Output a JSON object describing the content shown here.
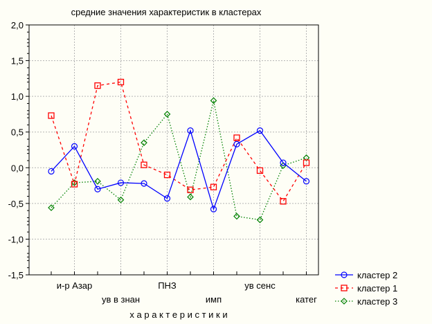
{
  "chart_data": {
    "type": "line",
    "title": "средние значения характеристик в кластерах",
    "xlabel": "х а р а к т е р и с т и к и",
    "ylabel": "",
    "ylim": [
      -1.5,
      2.0
    ],
    "yticks": [
      "2,0",
      "1,5",
      "1,0",
      "0,5",
      "0,0",
      "-0,5",
      "-1,0",
      "-1,5"
    ],
    "ytick_values": [
      2.0,
      1.5,
      1.0,
      0.5,
      0.0,
      -0.5,
      -1.0,
      -1.5
    ],
    "grid": true,
    "legend_position": "bottom-right",
    "categories": [
      "",
      "и-р Азар",
      "",
      "ув в знан",
      "",
      "ПНЗ",
      "",
      "имп",
      "",
      "ув сенс",
      "",
      "катег"
    ],
    "series": [
      {
        "name": "кластер 2",
        "color": "#0000ff",
        "marker": "circle",
        "dash": "solid",
        "values": [
          -0.05,
          0.3,
          -0.3,
          -0.21,
          -0.22,
          -0.43,
          0.52,
          -0.58,
          0.33,
          0.52,
          0.07,
          -0.19
        ]
      },
      {
        "name": "кластер 1",
        "color": "#ff0000",
        "marker": "square",
        "dash": "dashed",
        "values": [
          0.73,
          -0.23,
          1.15,
          1.2,
          0.04,
          -0.1,
          -0.31,
          -0.27,
          0.42,
          -0.04,
          -0.47,
          0.07
        ]
      },
      {
        "name": "кластер 3",
        "color": "#008000",
        "marker": "diamond",
        "dash": "dotted",
        "values": [
          -0.56,
          -0.21,
          -0.19,
          -0.45,
          0.35,
          0.75,
          -0.41,
          0.94,
          -0.68,
          -0.73,
          0.03,
          0.14
        ]
      }
    ]
  }
}
